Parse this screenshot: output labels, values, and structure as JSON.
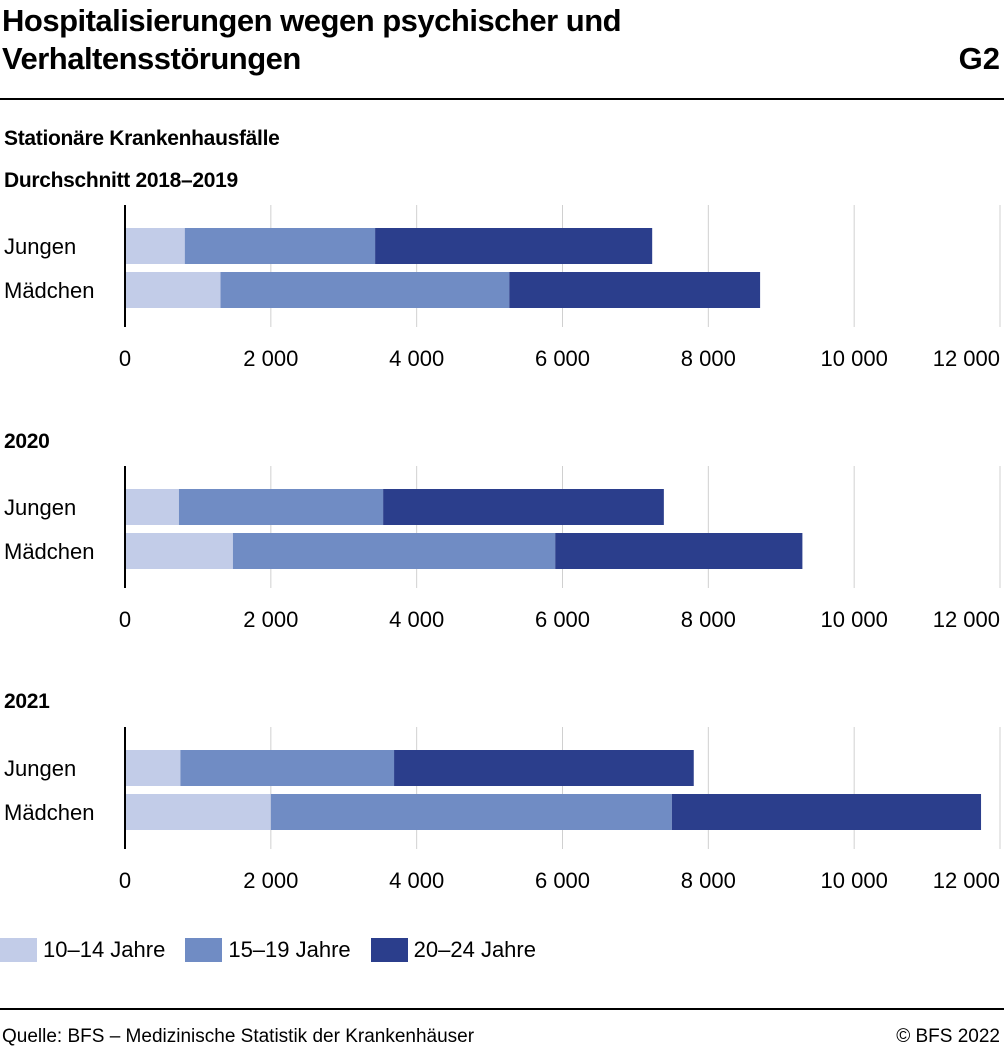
{
  "header": {
    "title": "Hospitalisierungen wegen psychischer und Verhaltensstörungen",
    "code": "G2",
    "subtitle": "Stationäre Krankenhausfälle"
  },
  "chart_data": [
    {
      "type": "bar",
      "orientation": "horizontal",
      "stacked": true,
      "title": "Durchschnitt 2018–2019",
      "categories": [
        "Jungen",
        "Mädchen"
      ],
      "series": [
        {
          "name": "10–14 Jahre",
          "values": [
            820,
            1310
          ]
        },
        {
          "name": "15–19 Jahre",
          "values": [
            2610,
            3960
          ]
        },
        {
          "name": "20–24 Jahre",
          "values": [
            3800,
            3440
          ]
        }
      ],
      "xlim": [
        0,
        12000
      ],
      "xticks": [
        0,
        2000,
        4000,
        6000,
        8000,
        10000,
        12000
      ],
      "xtick_labels": [
        "0",
        "2 000",
        "4 000",
        "6 000",
        "8 000",
        "10 000",
        "12 000"
      ],
      "grid": true
    },
    {
      "type": "bar",
      "orientation": "horizontal",
      "stacked": true,
      "title": "2020",
      "categories": [
        "Jungen",
        "Mädchen"
      ],
      "series": [
        {
          "name": "10–14 Jahre",
          "values": [
            740,
            1480
          ]
        },
        {
          "name": "15–19 Jahre",
          "values": [
            2800,
            4420
          ]
        },
        {
          "name": "20–24 Jahre",
          "values": [
            3850,
            3390
          ]
        }
      ],
      "xlim": [
        0,
        12000
      ],
      "xticks": [
        0,
        2000,
        4000,
        6000,
        8000,
        10000,
        12000
      ],
      "xtick_labels": [
        "0",
        "2 000",
        "4 000",
        "6 000",
        "8 000",
        "10 000",
        "12 000"
      ],
      "grid": true
    },
    {
      "type": "bar",
      "orientation": "horizontal",
      "stacked": true,
      "title": "2021",
      "categories": [
        "Jungen",
        "Mädchen"
      ],
      "series": [
        {
          "name": "10–14 Jahre",
          "values": [
            760,
            2000
          ]
        },
        {
          "name": "15–19 Jahre",
          "values": [
            2930,
            5500
          ]
        },
        {
          "name": "20–24 Jahre",
          "values": [
            4110,
            4240
          ]
        }
      ],
      "xlim": [
        0,
        12000
      ],
      "xticks": [
        0,
        2000,
        4000,
        6000,
        8000,
        10000,
        12000
      ],
      "xtick_labels": [
        "0",
        "2 000",
        "4 000",
        "6 000",
        "8 000",
        "10 000",
        "12 000"
      ],
      "grid": true
    }
  ],
  "legend": [
    {
      "label": "10–14 Jahre",
      "color": "#c2cce8"
    },
    {
      "label": "15–19 Jahre",
      "color": "#708cc4"
    },
    {
      "label": "20–24 Jahre",
      "color": "#2b3e8c"
    }
  ],
  "footer": {
    "source": "Quelle: BFS – Medizinische Statistik der Krankenhäuser",
    "copyright": "© BFS 2022"
  }
}
